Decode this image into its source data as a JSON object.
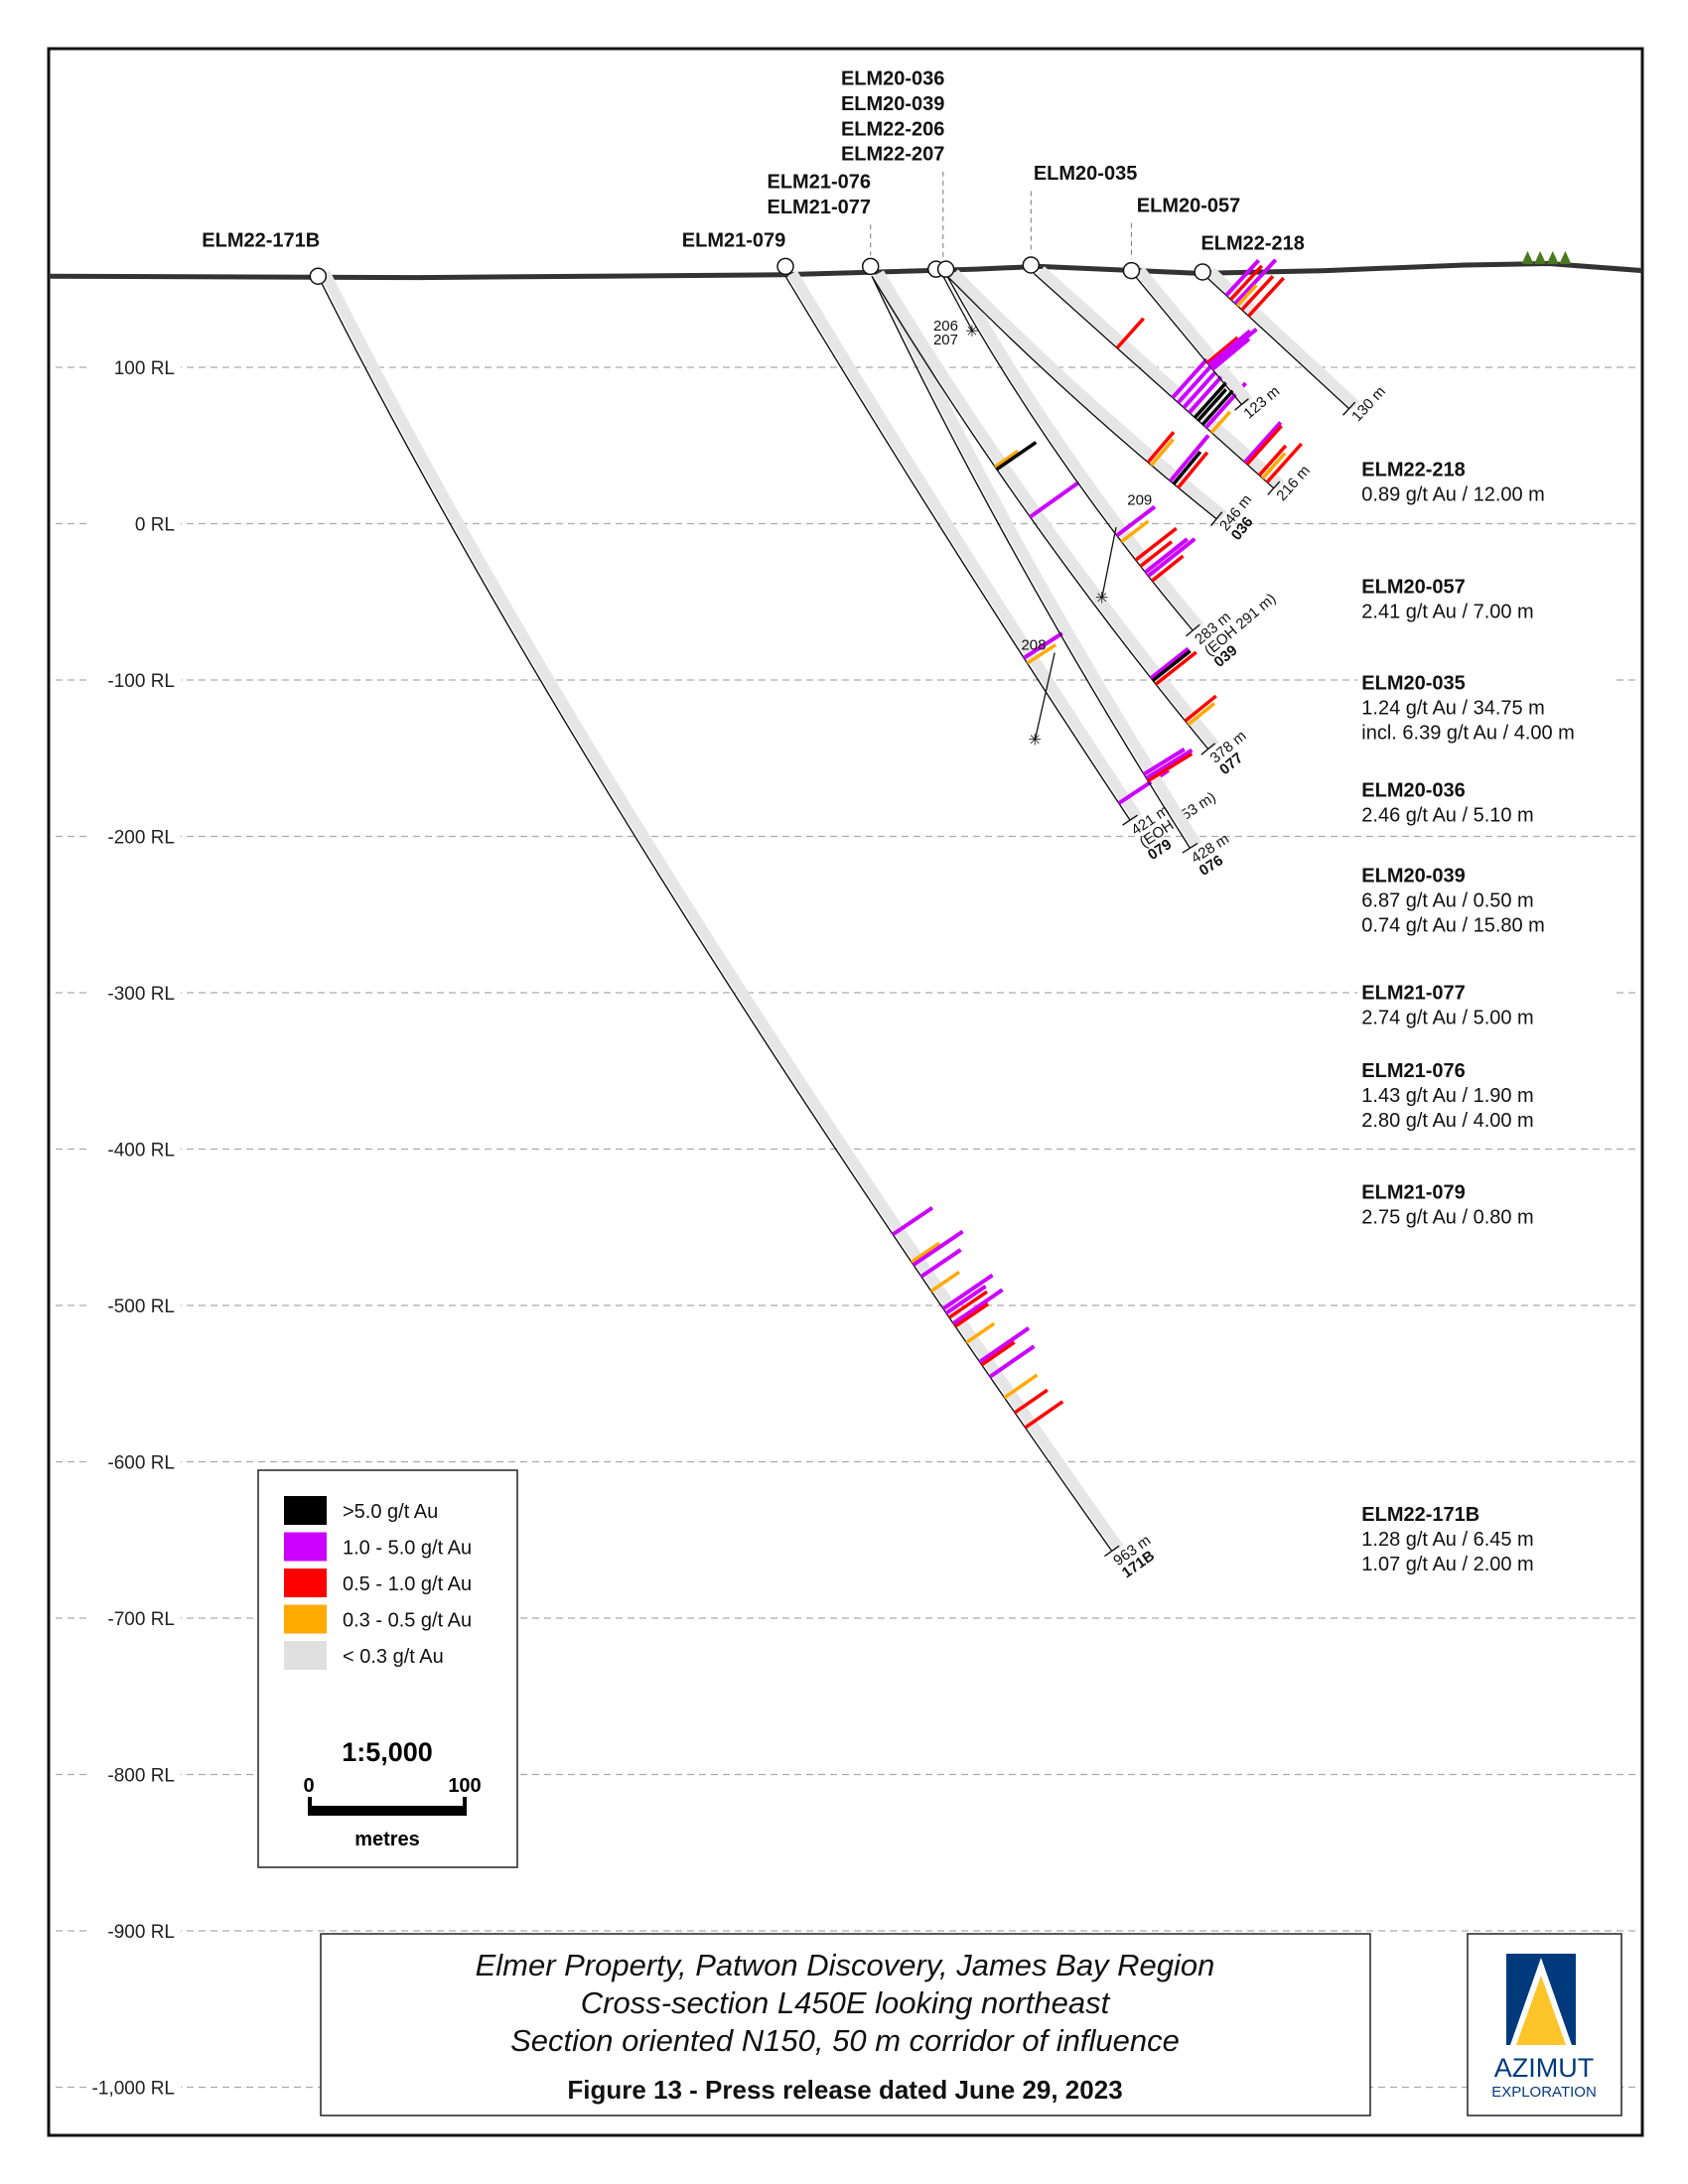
{
  "collar_labels": [
    {
      "lines": [
        "ELM22-171B"
      ]
    },
    {
      "lines": [
        "ELM21-079"
      ]
    },
    {
      "lines": [
        "ELM21-076",
        "ELM21-077"
      ]
    },
    {
      "lines": [
        "ELM20-036",
        "ELM20-039",
        "ELM22-206",
        "ELM22-207"
      ]
    },
    {
      "lines": [
        "ELM20-035"
      ]
    },
    {
      "lines": [
        "ELM20-057"
      ]
    },
    {
      "lines": [
        "ELM22-218"
      ]
    }
  ],
  "rl_labels": [
    "100 RL",
    "0 RL",
    "-100 RL",
    "-200 RL",
    "-300 RL",
    "-400 RL",
    "-500 RL",
    "-600 RL",
    "-700 RL",
    "-800 RL",
    "-900 RL",
    "-1,000 RL"
  ],
  "holes": [
    {
      "id": "ELM22-171B",
      "length_m": 963,
      "end_labels": [
        "963 m",
        "171B"
      ],
      "assays": [
        [
          751,
          1
        ],
        [
          770,
          3
        ],
        [
          772,
          1
        ],
        [
          780,
          1
        ],
        [
          790,
          3
        ],
        [
          802,
          1
        ],
        [
          805,
          1
        ],
        [
          808,
          2
        ],
        [
          812,
          1
        ],
        [
          814,
          2
        ],
        [
          825,
          3
        ],
        [
          838,
          1
        ],
        [
          840,
          2
        ],
        [
          848,
          1
        ],
        [
          862,
          3
        ],
        [
          872,
          2
        ],
        [
          882,
          2
        ]
      ]
    },
    {
      "id": "ELM21-079",
      "length_m": 421,
      "end_labels": [
        "421 m",
        "(EOH 453 m)",
        "079"
      ],
      "assays": [
        [
          296,
          1
        ],
        [
          300,
          3
        ],
        [
          408,
          1
        ]
      ]
    },
    {
      "id": "ELM21-076",
      "length_m": 428,
      "end_labels": [
        "428 m",
        "076"
      ],
      "assays": [
        [
          373,
          1
        ],
        [
          376,
          1
        ],
        [
          378,
          2
        ]
      ]
    },
    {
      "id": "ELM21-077",
      "length_m": 378,
      "end_labels": [
        "378 m",
        "077"
      ],
      "assays": [
        [
          150,
          3
        ],
        [
          152,
          0
        ],
        [
          190,
          1
        ],
        [
          320,
          1
        ],
        [
          322,
          0
        ],
        [
          325,
          2
        ],
        [
          355,
          2
        ],
        [
          358,
          3
        ]
      ]
    },
    {
      "id": "ELM20-039",
      "length_m": 283,
      "end_labels": [
        "283 m",
        "(EOH 291 m)",
        "039"
      ],
      "assays": [
        [
          205,
          1
        ],
        [
          210,
          3
        ],
        [
          225,
          2
        ],
        [
          230,
          2
        ],
        [
          235,
          1
        ],
        [
          238,
          1
        ],
        [
          242,
          2
        ]
      ]
    },
    {
      "id": "ELM20-036",
      "length_m": 246,
      "end_labels": [
        "246 m",
        "036"
      ],
      "assays": [
        [
          185,
          2
        ],
        [
          188,
          3
        ],
        [
          205,
          1
        ],
        [
          208,
          0
        ],
        [
          212,
          2
        ]
      ]
    },
    {
      "id": "ELM20-035",
      "length_m": 216,
      "end_labels": [
        "216 m"
      ],
      "assays": [
        [
          75,
          2
        ],
        [
          125,
          1
        ],
        [
          130,
          1
        ],
        [
          135,
          1
        ],
        [
          140,
          1
        ],
        [
          145,
          0
        ],
        [
          148,
          0
        ],
        [
          152,
          0
        ],
        [
          155,
          1
        ],
        [
          160,
          3
        ],
        [
          190,
          1
        ],
        [
          192,
          2
        ],
        [
          203,
          2
        ],
        [
          206,
          3
        ],
        [
          210,
          2
        ]
      ]
    },
    {
      "id": "ELM20-057",
      "length_m": 123,
      "end_labels": [
        "123 m"
      ],
      "assays": [
        [
          84,
          2
        ],
        [
          86,
          1
        ],
        [
          88,
          1
        ],
        [
          90,
          1
        ]
      ]
    },
    {
      "id": "ELM22-218",
      "length_m": 130,
      "end_labels": [
        "130 m"
      ],
      "assays": [
        [
          20,
          1
        ],
        [
          24,
          2
        ],
        [
          28,
          1
        ],
        [
          30,
          3
        ],
        [
          34,
          2
        ],
        [
          40,
          2
        ]
      ]
    }
  ],
  "wedges": [
    "206",
    "207",
    "208",
    "209"
  ],
  "results": [
    {
      "hole": "ELM22-218",
      "lines": [
        "0.89 g/t Au / 12.00 m"
      ]
    },
    {
      "hole": "ELM20-057",
      "lines": [
        "2.41 g/t Au / 7.00 m"
      ]
    },
    {
      "hole": "ELM20-035",
      "lines": [
        "1.24 g/t Au / 34.75 m",
        "incl. 6.39 g/t Au / 4.00 m"
      ]
    },
    {
      "hole": "ELM20-036",
      "lines": [
        "2.46 g/t Au / 5.10 m"
      ]
    },
    {
      "hole": "ELM20-039",
      "lines": [
        "6.87 g/t Au / 0.50 m",
        "0.74 g/t Au / 15.80 m"
      ]
    },
    {
      "hole": "ELM21-077",
      "lines": [
        "2.74 g/t Au / 5.00 m"
      ]
    },
    {
      "hole": "ELM21-076",
      "lines": [
        "1.43 g/t Au / 1.90 m",
        "2.80 g/t Au / 4.00 m"
      ]
    },
    {
      "hole": "ELM21-079",
      "lines": [
        "2.75 g/t Au / 0.80 m"
      ]
    },
    {
      "hole": "ELM22-171B",
      "lines": [
        "1.28 g/t Au / 6.45 m",
        "1.07 g/t Au / 2.00 m"
      ]
    }
  ],
  "legend": {
    "items": [
      {
        "label": ">5.0 g/t Au",
        "color": "#000000"
      },
      {
        "label": "1.0 - 5.0 g/t Au",
        "color": "#cc00ff"
      },
      {
        "label": "0.5 - 1.0 g/t Au",
        "color": "#ff0000"
      },
      {
        "label": "0.3 - 0.5 g/t Au",
        "color": "#ffaa00"
      },
      {
        "label": "< 0.3 g/t Au",
        "color": "#e0e0e0"
      }
    ],
    "scale": "1:5,000",
    "scale_min": "0",
    "scale_max": "100",
    "scale_unit": "metres"
  },
  "title": {
    "line1": "Elmer Property, Patwon Discovery, James Bay Region",
    "line2": "Cross-section L450E looking northeast",
    "line3": "Section oriented N150, 50 m corridor of influence",
    "figure": "Figure 13 - Press release dated June 29, 2023"
  },
  "logo": {
    "name": "AZIMUT",
    "sub": "EXPLORATION",
    "blue": "#003a7d",
    "gold": "#fdc52a"
  }
}
